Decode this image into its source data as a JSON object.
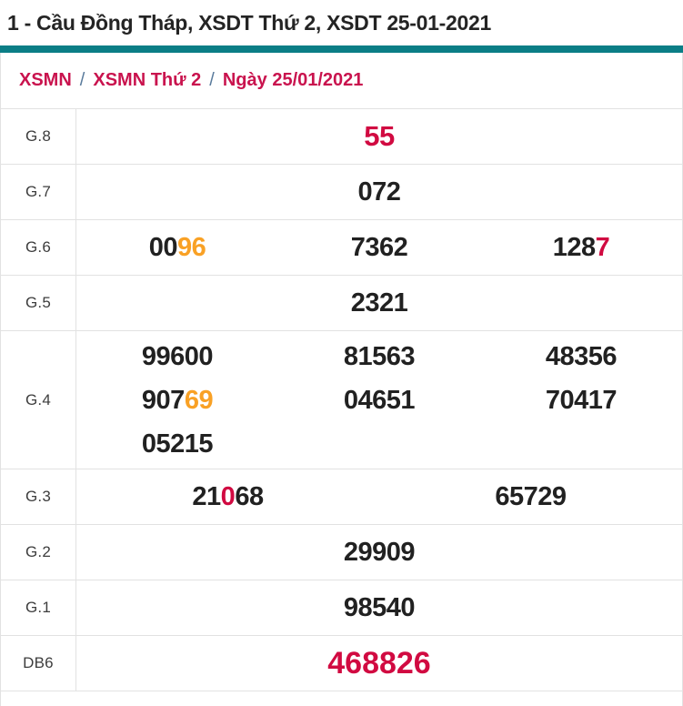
{
  "header": {
    "title": "1 - Cầu Đồng Tháp, XSDT Thứ 2, XSDT 25-01-2021"
  },
  "breadcrumb": {
    "separator": "/",
    "items": [
      {
        "label": "XSMN"
      },
      {
        "label": "XSMN Thứ 2"
      },
      {
        "label": "Ngày 25/01/2021"
      }
    ]
  },
  "colors": {
    "accent_red": "#d10a41",
    "accent_orange": "#f9a125",
    "text_black": "#212121",
    "title_color": "#242424",
    "teal_bar": "#0b7e86",
    "breadcrumb_red": "#c9134e",
    "slash_color": "#5a7b9c",
    "border_gray": "#e2e2e2"
  },
  "table": {
    "rows": [
      {
        "label": "G.8",
        "size": "g8",
        "lines": [
          [
            [
              {
                "t": "55",
                "c": "red"
              }
            ]
          ]
        ]
      },
      {
        "label": "G.7",
        "lines": [
          [
            [
              {
                "t": "072"
              }
            ]
          ]
        ]
      },
      {
        "label": "G.6",
        "lines": [
          [
            [
              {
                "t": "00"
              },
              {
                "t": "96",
                "c": "orange"
              }
            ],
            [
              {
                "t": "7362"
              }
            ],
            [
              {
                "t": "128"
              },
              {
                "t": "7",
                "c": "red"
              }
            ]
          ]
        ]
      },
      {
        "label": "G.5",
        "lines": [
          [
            [
              {
                "t": "2321"
              }
            ]
          ]
        ]
      },
      {
        "label": "G.4",
        "lines": [
          [
            [
              {
                "t": "99600"
              }
            ],
            [
              {
                "t": "81563"
              }
            ],
            [
              {
                "t": "48356"
              }
            ]
          ],
          [
            [
              {
                "t": "907"
              },
              {
                "t": "69",
                "c": "orange"
              }
            ],
            [
              {
                "t": "04651"
              }
            ],
            [
              {
                "t": "70417"
              }
            ]
          ],
          [
            [
              {
                "t": "05215"
              }
            ],
            [],
            []
          ]
        ]
      },
      {
        "label": "G.3",
        "lines": [
          [
            [
              {
                "t": "21"
              },
              {
                "t": "0",
                "c": "red"
              },
              {
                "t": "68"
              }
            ],
            [
              {
                "t": "65729"
              }
            ]
          ]
        ]
      },
      {
        "label": "G.2",
        "lines": [
          [
            [
              {
                "t": "29909"
              }
            ]
          ]
        ]
      },
      {
        "label": "G.1",
        "lines": [
          [
            [
              {
                "t": "98540"
              }
            ]
          ]
        ]
      },
      {
        "label": "DB6",
        "size": "db",
        "lines": [
          [
            [
              {
                "t": "468826",
                "c": "red"
              }
            ]
          ]
        ]
      }
    ]
  }
}
